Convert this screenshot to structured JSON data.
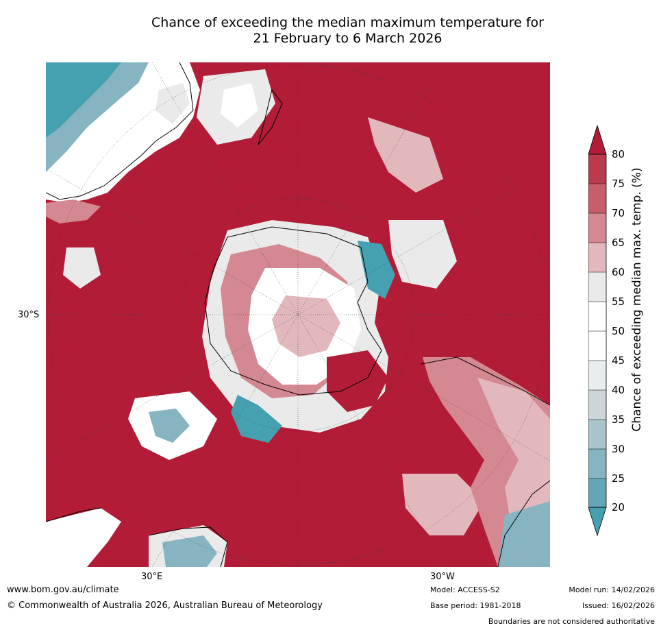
{
  "title": {
    "line1": "Chance of exceeding the median maximum temperature for",
    "line2": "21 February to 6 March 2026"
  },
  "map": {
    "projection": "south-polar stereographic",
    "labels": {
      "lat_30s": "30°S",
      "lon_30e": "30°E",
      "lon_30w": "30°W"
    },
    "dominant_fill": "#b21c37"
  },
  "colorbar": {
    "title": "Chance of exceeding median max. temp. (%)",
    "ticks": [
      "80",
      "75",
      "70",
      "65",
      "60",
      "55",
      "50",
      "45",
      "40",
      "35",
      "30",
      "25",
      "20"
    ],
    "colors": [
      "#b21c37",
      "#bb3b4e",
      "#c75e6c",
      "#d48891",
      "#e2b8bc",
      "#ebeaea",
      "#ffffff",
      "#ffffff",
      "#e8edef",
      "#cdd5d8",
      "#a9c5cb",
      "#86b5c1",
      "#63a6b6",
      "#45a0b0"
    ]
  },
  "footer": {
    "website": "www.bom.gov.au/climate",
    "copyright": "© Commonwealth of Australia 2026, Australian Bureau of Meteorology",
    "model": "Model: ACCESS-S2",
    "base_period": "Base period: 1981-2018",
    "model_run": "Model run: 14/02/2026",
    "issued": "Issued: 16/02/2026",
    "disclaimer": "Boundaries are not considered authoritative"
  }
}
